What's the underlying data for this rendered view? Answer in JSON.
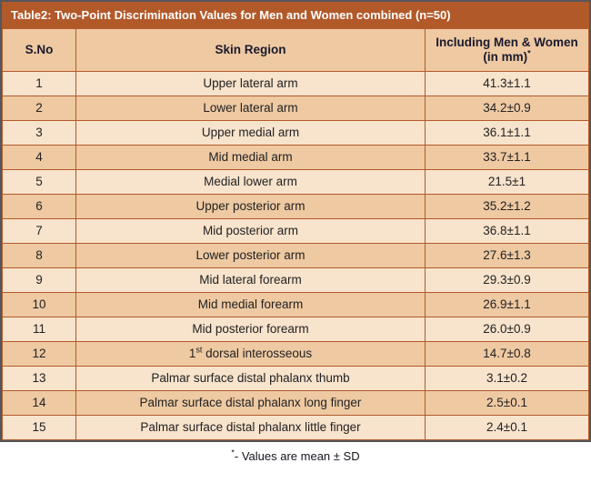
{
  "colors": {
    "title_bg": "#b2592a",
    "title_fg": "#ffffff",
    "header_bg": "#eec9a2",
    "header_fg": "#1a1a2e",
    "row_light": "#f8e3cc",
    "row_dark": "#eec9a2",
    "grid_border": "#b2592a",
    "outer_border": "#56565a",
    "cell_fg": "#222222",
    "footnote_fg": "#14141e"
  },
  "table": {
    "title": "Table2: Two-Point Discrimination Values for Men and Women combined (n=50)",
    "columns": [
      "S.No",
      "Skin Region",
      "Including Men & Women (in mm){*}"
    ],
    "rows": [
      {
        "sno": "1",
        "region": "Upper lateral arm",
        "value": "41.3±1.1"
      },
      {
        "sno": "2",
        "region": "Lower lateral arm",
        "value": "34.2±0.9"
      },
      {
        "sno": "3",
        "region": "Upper medial arm",
        "value": "36.1±1.1"
      },
      {
        "sno": "4",
        "region": "Mid medial arm",
        "value": "33.7±1.1"
      },
      {
        "sno": "5",
        "region": "Medial lower arm",
        "value": "21.5±1"
      },
      {
        "sno": "6",
        "region": "Upper posterior arm",
        "value": "35.2±1.2"
      },
      {
        "sno": "7",
        "region": "Mid posterior arm",
        "value": "36.8±1.1"
      },
      {
        "sno": "8",
        "region": "Lower posterior arm",
        "value": "27.6±1.3"
      },
      {
        "sno": "9",
        "region": "Mid lateral forearm",
        "value": "29.3±0.9"
      },
      {
        "sno": "10",
        "region": "Mid medial forearm",
        "value": "26.9±1.1"
      },
      {
        "sno": "11",
        "region": "Mid posterior forearm",
        "value": "26.0±0.9"
      },
      {
        "sno": "12",
        "region": "1{st} dorsal interosseous",
        "value": "14.7±0.8"
      },
      {
        "sno": "13",
        "region": "Palmar surface distal phalanx thumb",
        "value": "3.1±0.2"
      },
      {
        "sno": "14",
        "region": "Palmar surface distal phalanx long finger",
        "value": "2.5±0.1"
      },
      {
        "sno": "15",
        "region": "Palmar surface distal phalanx little finger",
        "value": "2.4±0.1"
      }
    ],
    "footnote": "{*}- Values are mean ± SD"
  },
  "chart_data": {
    "type": "table",
    "title": "Table2: Two-Point Discrimination Values for Men and Women combined (n=50)",
    "columns": [
      "S.No",
      "Skin Region",
      "Including Men & Women (in mm)*"
    ],
    "rows": [
      [
        1,
        "Upper lateral arm",
        "41.3±1.1"
      ],
      [
        2,
        "Lower lateral arm",
        "34.2±0.9"
      ],
      [
        3,
        "Upper medial arm",
        "36.1±1.1"
      ],
      [
        4,
        "Mid medial arm",
        "33.7±1.1"
      ],
      [
        5,
        "Medial lower arm",
        "21.5±1"
      ],
      [
        6,
        "Upper posterior arm",
        "35.2±1.2"
      ],
      [
        7,
        "Mid posterior arm",
        "36.8±1.1"
      ],
      [
        8,
        "Lower posterior arm",
        "27.6±1.3"
      ],
      [
        9,
        "Mid lateral forearm",
        "29.3±0.9"
      ],
      [
        10,
        "Mid medial forearm",
        "26.9±1.1"
      ],
      [
        11,
        "Mid posterior forearm",
        "26.0±0.9"
      ],
      [
        12,
        "1st dorsal interosseous",
        "14.7±0.8"
      ],
      [
        13,
        "Palmar surface distal phalanx thumb",
        "3.1±0.2"
      ],
      [
        14,
        "Palmar surface distal phalanx long finger",
        "2.5±0.1"
      ],
      [
        15,
        "Palmar surface distal phalanx little finger",
        "2.4±0.1"
      ]
    ],
    "footnote": "*- Values are mean ± SD",
    "values_format": "mean ± SD",
    "n": 50
  }
}
